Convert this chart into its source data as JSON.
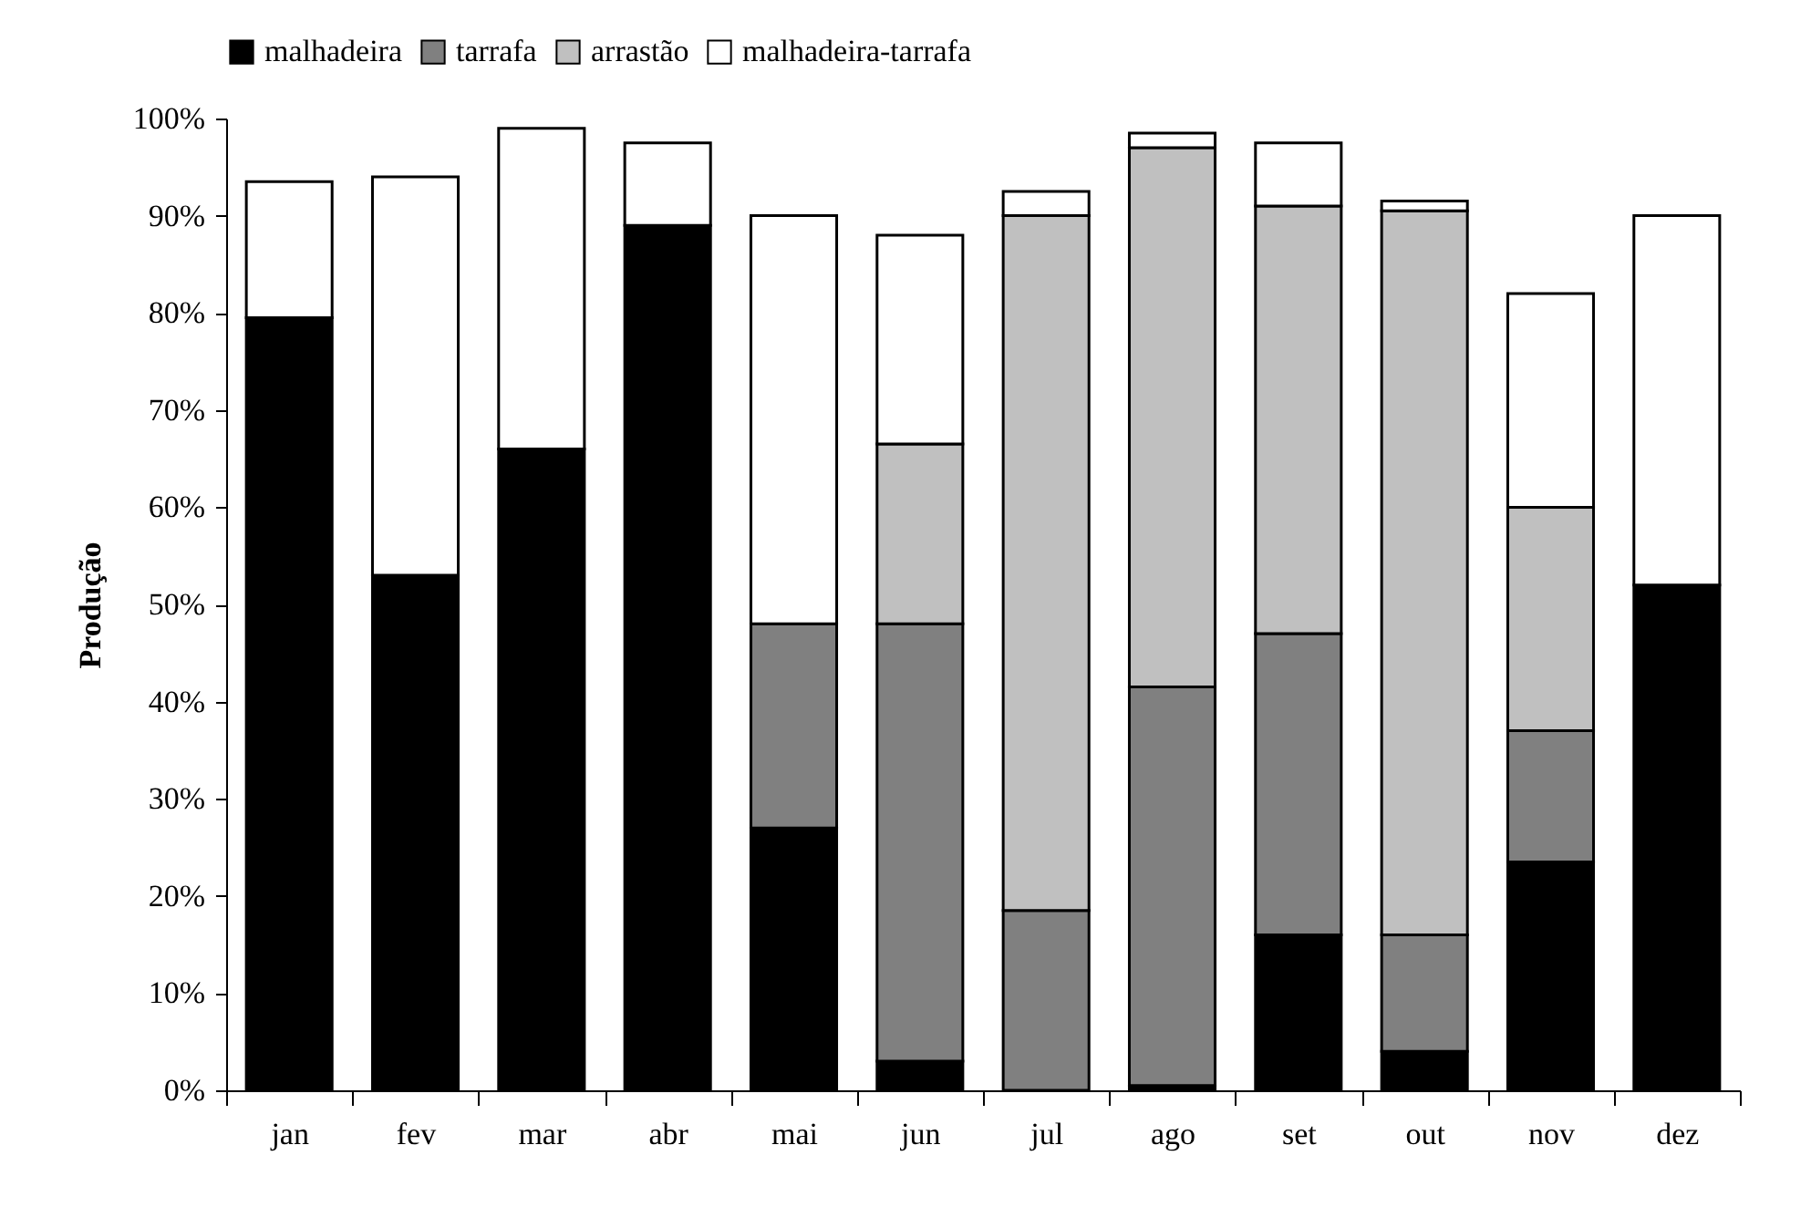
{
  "chart_data": {
    "type": "bar",
    "stacked": true,
    "ylabel": "Produção",
    "categories": [
      "jan",
      "fev",
      "mar",
      "abr",
      "mai",
      "jun",
      "jul",
      "ago",
      "set",
      "out",
      "nov",
      "dez"
    ],
    "series": [
      {
        "name": "malhadeira",
        "color": "#000000",
        "values": [
          79.5,
          53,
          66,
          89,
          27,
          3,
          null,
          0.5,
          16,
          4,
          23.5,
          52
        ]
      },
      {
        "name": "tarrafa",
        "color": "#808080",
        "values": [
          null,
          null,
          null,
          null,
          21,
          45,
          18.5,
          41,
          31,
          12,
          13.5,
          null
        ]
      },
      {
        "name": "arrastão",
        "color": "#c0c0c0",
        "values": [
          null,
          null,
          null,
          null,
          null,
          18.5,
          71.5,
          55.5,
          44,
          74.5,
          23,
          null
        ]
      },
      {
        "name": "malhadeira-tarrafa",
        "color": "#ffffff",
        "values": [
          14,
          41,
          33,
          8.5,
          42,
          21.5,
          2.5,
          1.5,
          6.5,
          1,
          22,
          38
        ]
      }
    ],
    "ylim": [
      0,
      100
    ],
    "yticks": [
      {
        "value": 0,
        "label": "0%"
      },
      {
        "value": 10,
        "label": "10%"
      },
      {
        "value": 20,
        "label": "20%"
      },
      {
        "value": 30,
        "label": "30%"
      },
      {
        "value": 40,
        "label": "40%"
      },
      {
        "value": 50,
        "label": "50%"
      },
      {
        "value": 60,
        "label": "60%"
      },
      {
        "value": 70,
        "label": "70%"
      },
      {
        "value": 80,
        "label": "80%"
      },
      {
        "value": 90,
        "label": "90%"
      },
      {
        "value": 100,
        "label": "100%"
      }
    ],
    "grid": false,
    "legend": "top"
  }
}
